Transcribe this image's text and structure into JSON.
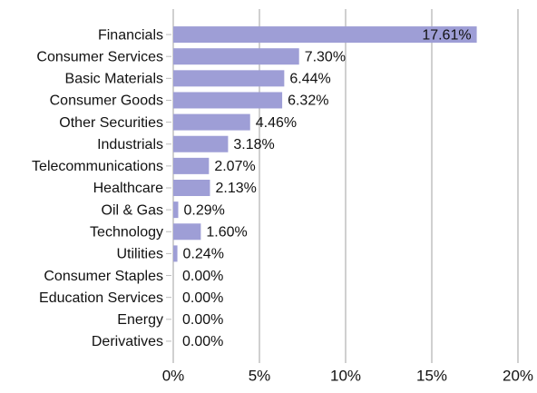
{
  "chart_data": {
    "type": "bar",
    "orientation": "horizontal",
    "categories": [
      "Financials",
      "Consumer Services",
      "Basic Materials",
      "Consumer Goods",
      "Other Securities",
      "Industrials",
      "Telecommunications",
      "Healthcare",
      "Oil & Gas",
      "Technology",
      "Utilities",
      "Consumer Staples",
      "Education Services",
      "Energy",
      "Derivatives"
    ],
    "values": [
      17.61,
      7.3,
      6.44,
      6.32,
      4.46,
      3.18,
      2.07,
      2.13,
      0.29,
      1.6,
      0.24,
      0.0,
      0.0,
      0.0,
      0.0
    ],
    "value_labels": [
      "17.61%",
      "7.30%",
      "6.44%",
      "6.32%",
      "4.46%",
      "3.18%",
      "2.07%",
      "2.13%",
      "0.29%",
      "1.60%",
      "0.24%",
      "0.00%",
      "0.00%",
      "0.00%",
      "0.00%"
    ],
    "color": "#9e9ed6",
    "xlim": [
      0,
      20
    ],
    "xticks": [
      {
        "value": 0,
        "label": "0%"
      },
      {
        "value": 5,
        "label": "5%"
      },
      {
        "value": 10,
        "label": "10%"
      },
      {
        "value": 15,
        "label": "15%"
      },
      {
        "value": 20,
        "label": "20%"
      }
    ],
    "grid": true
  }
}
